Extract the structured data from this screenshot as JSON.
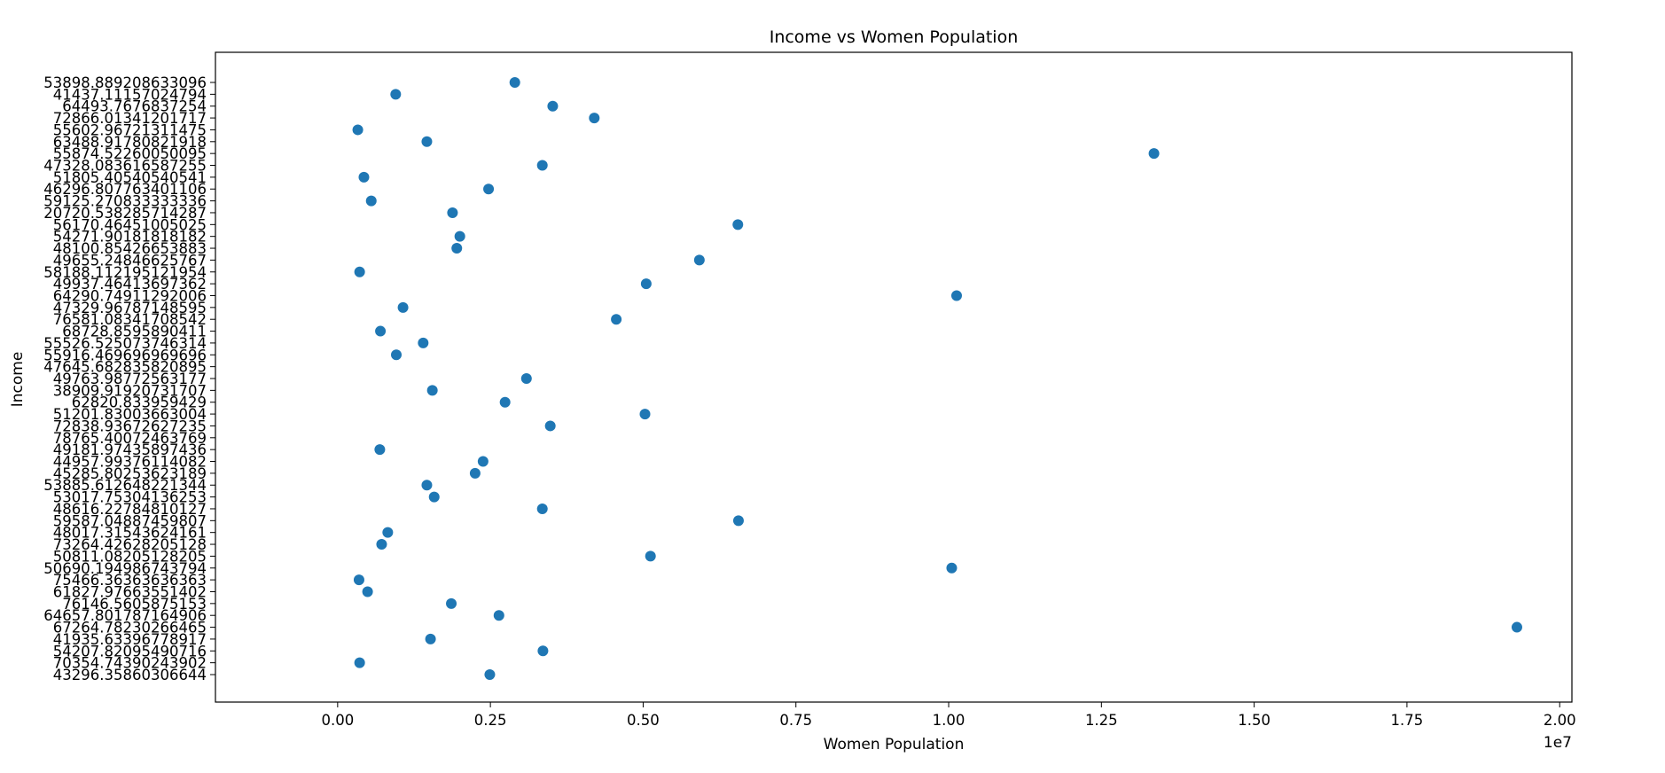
{
  "chart_data": {
    "type": "scatter",
    "title": "Income vs Women Population",
    "xlabel": "Women Population",
    "ylabel": "Income",
    "x_offset_label": "1e7",
    "xlim": [
      -0.2,
      2.02
    ],
    "x_ticks": [
      0.0,
      0.25,
      0.5,
      0.75,
      1.0,
      1.25,
      1.5,
      1.75,
      2.0
    ],
    "x_tick_labels": [
      "0.00",
      "0.25",
      "0.50",
      "0.75",
      "1.00",
      "1.25",
      "1.50",
      "1.75",
      "2.00"
    ],
    "grid": false,
    "marker_color": "#1f77b4",
    "categories": [
      "53898.889208633096",
      "41437.11157024794",
      "64493.7676837254",
      "72866.01341201717",
      "55602.96721311475",
      "63488.9178082191​8",
      "55874.52260050095",
      "47328.083616587255",
      "51805.40540540541",
      "46296.807763401106",
      "59125.270833333336",
      "20720.538285714287",
      "56170.46451005025",
      "54271.90181818182",
      "48100.85426653883",
      "49655.24846625767",
      "58188.11219512195​4",
      "49937.46413697362",
      "64290.74911292006",
      "47329.96787148595",
      "76581.08341708542",
      "68728.8595890411",
      "55526.525073746314",
      "55916.469696969696",
      "47645.682835820895",
      "49763.98772563177",
      "38909.91920731707",
      "62820.833959429",
      "51201.83003663004",
      "72838.93672627235",
      "78765.40072463769",
      "49181.97435897436",
      "44957.99376114082",
      "45285.80253623189",
      "53885.612648221344",
      "53017.75304136253",
      "48616.22784810127",
      "59587.04887459807",
      "48017.31543624161",
      "73264.42628205128",
      "50811.08205128205",
      "50690.194986743794",
      "75466.36363636363",
      "61827.97663551402",
      "76146.5605875153",
      "64657.801787164906",
      "67264.78230266465",
      "41935.63396778917",
      "54207.82095490716",
      "70354.74390243902",
      "43296.35860306644"
    ],
    "x": [
      0.29,
      0.095,
      0.352,
      0.42,
      0.033,
      0.146,
      1.336,
      0.335,
      0.043,
      0.247,
      0.055,
      0.188,
      0.655,
      0.2,
      0.195,
      0.592,
      0.036,
      0.505,
      1.013,
      0.107,
      0.456,
      0.07,
      0.14,
      0.096,
      null,
      0.309,
      0.155,
      0.274,
      0.503,
      0.348,
      null,
      0.069,
      0.238,
      0.225,
      0.146,
      0.158,
      0.335,
      0.656,
      0.082,
      0.072,
      0.512,
      1.005,
      0.035,
      0.049,
      0.186,
      0.264,
      1.93,
      0.152,
      0.336,
      0.036,
      0.249
    ]
  }
}
